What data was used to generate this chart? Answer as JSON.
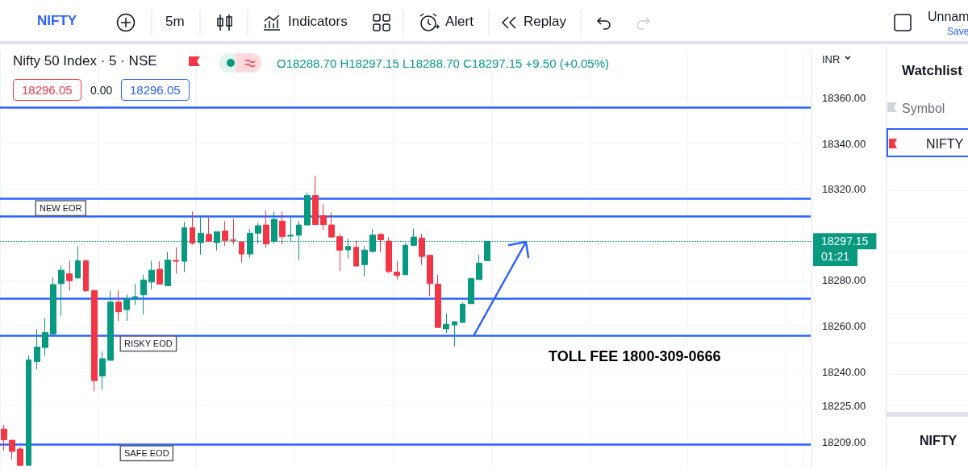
{
  "chart_data": {
    "type": "candlestick",
    "title": "Nifty 50 Index · 5 · NSE",
    "subtitle": "O18288.70 H18297.15 L18288.70 C18297.15 +9.50 (+0.05%)",
    "categories": [
      null,
      null,
      null,
      null,
      null,
      null,
      null,
      null,
      null,
      null,
      null,
      null,
      null,
      null,
      null,
      null,
      null,
      null,
      null,
      null,
      null,
      null,
      null,
      null,
      null,
      null,
      null,
      null,
      null,
      null,
      null,
      null,
      null,
      null,
      null,
      null,
      null,
      null,
      null,
      null,
      null,
      null,
      null,
      null,
      null,
      null,
      null,
      null,
      null,
      null,
      null,
      null,
      null,
      null,
      null,
      null,
      null,
      null,
      null,
      null,
      null,
      null,
      null,
      null,
      null,
      null,
      null,
      null,
      null,
      null,
      null,
      null,
      null,
      null,
      null,
      null,
      null,
      null,
      null,
      null,
      null,
      null,
      null,
      null,
      null,
      null,
      null,
      null,
      null,
      null,
      null,
      null,
      null,
      null,
      null,
      null,
      null,
      null,
      null
    ],
    "ohlc": [
      [
        18214.9,
        18216.7,
        18205.5,
        18210.2
      ],
      [
        18210.0,
        18210.0,
        18201.4,
        18205.1
      ],
      [
        18206.1,
        18206.9,
        18199,
        18199
      ],
      [
        18199,
        18247.2,
        18199,
        18245.2
      ],
      [
        18244.5,
        18258.6,
        18241,
        18250.8
      ],
      [
        18250.6,
        18263.4,
        18246.9,
        18257.2
      ],
      [
        18256.6,
        18281.3,
        18256,
        18278.2
      ],
      [
        18278.6,
        18286.6,
        18264.5,
        18284.5
      ],
      [
        18282.9,
        18288.7,
        18275.5,
        18279.9
      ],
      [
        18281.1,
        18295.1,
        18280.8,
        18288.6
      ],
      [
        18288.6,
        18289.2,
        18275,
        18275.5
      ],
      [
        18275.5,
        18276.1,
        18231.4,
        18236.1
      ],
      [
        18238.2,
        18248.8,
        18232.2,
        18245.7
      ],
      [
        18245,
        18275.5,
        18245,
        18270.5
      ],
      [
        18270.5,
        18275.7,
        18262.3,
        18266.3
      ],
      [
        18267.2,
        18273.9,
        18262.3,
        18271.7
      ],
      [
        18271.9,
        18278.6,
        18269.2,
        18272.9
      ],
      [
        18273.7,
        18282.5,
        18265.1,
        18280.2
      ],
      [
        18279.3,
        18288.6,
        18276.1,
        18284.5
      ],
      [
        18284.9,
        18288.4,
        18278.4,
        18278.4
      ],
      [
        18277.7,
        18292.5,
        18277.7,
        18289
      ],
      [
        18288.8,
        18294.5,
        18282.9,
        18288.4
      ],
      [
        18288.4,
        18305.7,
        18283.7,
        18303.1
      ],
      [
        18303.1,
        18310.2,
        18295.7,
        18296.3
      ],
      [
        18296.6,
        18307.6,
        18291.3,
        18300.7
      ],
      [
        18300.2,
        18307.6,
        18297.2,
        18297.2
      ],
      [
        18296.6,
        18301.3,
        18293.1,
        18301.3
      ],
      [
        18301.7,
        18306,
        18295.1,
        18297.5
      ],
      [
        18297.8,
        18307,
        18295.8,
        18297.5
      ],
      [
        18296.9,
        18296.9,
        18288,
        18291.6
      ],
      [
        18291.6,
        18302.5,
        18289.9,
        18300.7
      ],
      [
        18300.7,
        18305.2,
        18296,
        18304
      ],
      [
        18304.3,
        18310.7,
        18294.3,
        18296
      ],
      [
        18297.2,
        18310.2,
        18296,
        18306.8
      ],
      [
        18306,
        18310.2,
        18295.8,
        18299.2
      ],
      [
        18299.4,
        18308.4,
        18297,
        18299.8
      ],
      [
        18299.8,
        18306,
        18289,
        18304.3
      ],
      [
        18304.3,
        18318.4,
        18304.3,
        18317.2
      ],
      [
        18317.2,
        18326,
        18304.5,
        18304.5
      ],
      [
        18308.4,
        18313.4,
        18302.2,
        18304.5
      ],
      [
        18304.3,
        18309.8,
        18299,
        18299
      ],
      [
        18299.2,
        18300.5,
        18284.1,
        18293.3
      ],
      [
        18293.4,
        18298.4,
        18289.6,
        18294.9
      ],
      [
        18294.5,
        18297.5,
        18286.3,
        18286.3
      ],
      [
        18286.9,
        18295.1,
        18281.7,
        18293.3
      ],
      [
        18292.7,
        18302.5,
        18292.3,
        18299.9
      ],
      [
        18300.2,
        18300.7,
        18292.3,
        18297.8
      ],
      [
        18297.2,
        18299,
        18283.3,
        18283.9
      ],
      [
        18283.7,
        18288.6,
        18280.5,
        18282.2
      ],
      [
        18282.5,
        18296.3,
        18282.5,
        18295.4
      ],
      [
        18295.4,
        18302.7,
        18295.1,
        18299
      ],
      [
        18298.6,
        18300.5,
        18286.9,
        18290.5
      ],
      [
        18291,
        18291.3,
        18273.1,
        18278.6
      ],
      [
        18278.4,
        18282.5,
        18259.4,
        18259.4
      ],
      [
        18258.8,
        18265.5,
        18257,
        18260.8
      ],
      [
        18260.5,
        18262.3,
        18251.1,
        18261.9
      ],
      [
        18261.6,
        18270.4,
        18261.6,
        18269.6
      ],
      [
        18269.8,
        18281.1,
        18269.8,
        18280.8
      ],
      [
        18280.4,
        18291.3,
        18280.4,
        18287.6
      ],
      [
        18288.7,
        18297.15,
        18288.7,
        18297.15
      ],
      null,
      null,
      null,
      null,
      null,
      null,
      null,
      null,
      null,
      null,
      null,
      null,
      null,
      null,
      null,
      null,
      null,
      null,
      null,
      null,
      null,
      null,
      null,
      null,
      null,
      null,
      null,
      null,
      null,
      null,
      null,
      null,
      null,
      null,
      null,
      null,
      null,
      null,
      null
    ],
    "colors": [
      "#f23645",
      "#f23645",
      "#f23645",
      "#089981",
      "#089981",
      "#089981",
      "#089981",
      "#089981",
      "#f23645",
      "#089981",
      "#f23645",
      "#f23645",
      "#089981",
      "#089981",
      "#f23645",
      "#089981",
      "#089981",
      "#089981",
      "#089981",
      "#f23645",
      "#089981",
      "#f23645",
      "#089981",
      "#f23645",
      "#089981",
      "#f23645",
      "#089981",
      "#f23645",
      "#f23645",
      "#f23645",
      "#089981",
      "#089981",
      "#f23645",
      "#089981",
      "#f23645",
      "#089981",
      "#089981",
      "#089981",
      "#f23645",
      "#f23645",
      "#f23645",
      "#f23645",
      "#089981",
      "#f23645",
      "#089981",
      "#089981",
      "#f23645",
      "#f23645",
      "#f23645",
      "#089981",
      "#089981",
      "#f23645",
      "#f23645",
      "#f23645",
      "#089981",
      "#089981",
      "#089981",
      "#089981",
      "#089981",
      "#089981",
      null,
      null,
      null,
      null,
      null,
      null,
      null,
      null,
      null,
      null,
      null,
      null,
      null,
      null,
      null,
      null,
      null,
      null,
      null,
      null,
      null,
      null,
      null,
      null,
      null,
      null,
      null,
      null,
      null,
      null,
      null,
      null,
      null,
      null,
      null,
      null,
      null,
      null,
      null
    ],
    "ylim": [
      18198,
      18381
    ],
    "yticks": [
      {
        "value": 18360,
        "label": "18360.00"
      },
      {
        "value": 18340,
        "label": "18340.00"
      },
      {
        "value": 18320,
        "label": "18320.00"
      },
      {
        "value": 18280,
        "label": "18280.00"
      },
      {
        "value": 18260,
        "label": "18260.00"
      },
      {
        "value": 18240,
        "label": "18240.00"
      },
      {
        "value": 18225,
        "label": "18225.00"
      },
      {
        "value": 18209,
        "label": "18209.00"
      }
    ],
    "ref_lines": [
      {
        "axis": "y",
        "value": 18297.15,
        "label": "18297.15",
        "color": "#089981",
        "line_style": "dotted"
      },
      {
        "axis": "y",
        "value": 18356,
        "label": null,
        "color": "#2962ff"
      },
      {
        "axis": "y",
        "value": 18316,
        "label": null,
        "color": "#2962ff"
      },
      {
        "axis": "y",
        "value": 18308,
        "label": "NEW EOR",
        "color": "#2962ff"
      },
      {
        "axis": "y",
        "value": 18272,
        "label": null,
        "color": "#2962ff"
      },
      {
        "axis": "y",
        "value": 18256,
        "label": "RISKY EOD",
        "color": "#2962ff"
      },
      {
        "axis": "y",
        "value": 18208,
        "label": "SAFE EOD",
        "color": "#2962ff"
      }
    ],
    "annotations": [
      "NIFTY",
      "5m",
      "Indicators",
      "Alert",
      "Replay",
      "Unnam",
      "Save",
      "INR",
      "18296.05",
      "0.00",
      "18296.05",
      "Watchlist",
      "Symbol",
      "NIFTY",
      "TOLL FEE 1800-309-0666",
      "01:21",
      "NIFTY"
    ],
    "grid": true,
    "tick_labels": "y"
  }
}
